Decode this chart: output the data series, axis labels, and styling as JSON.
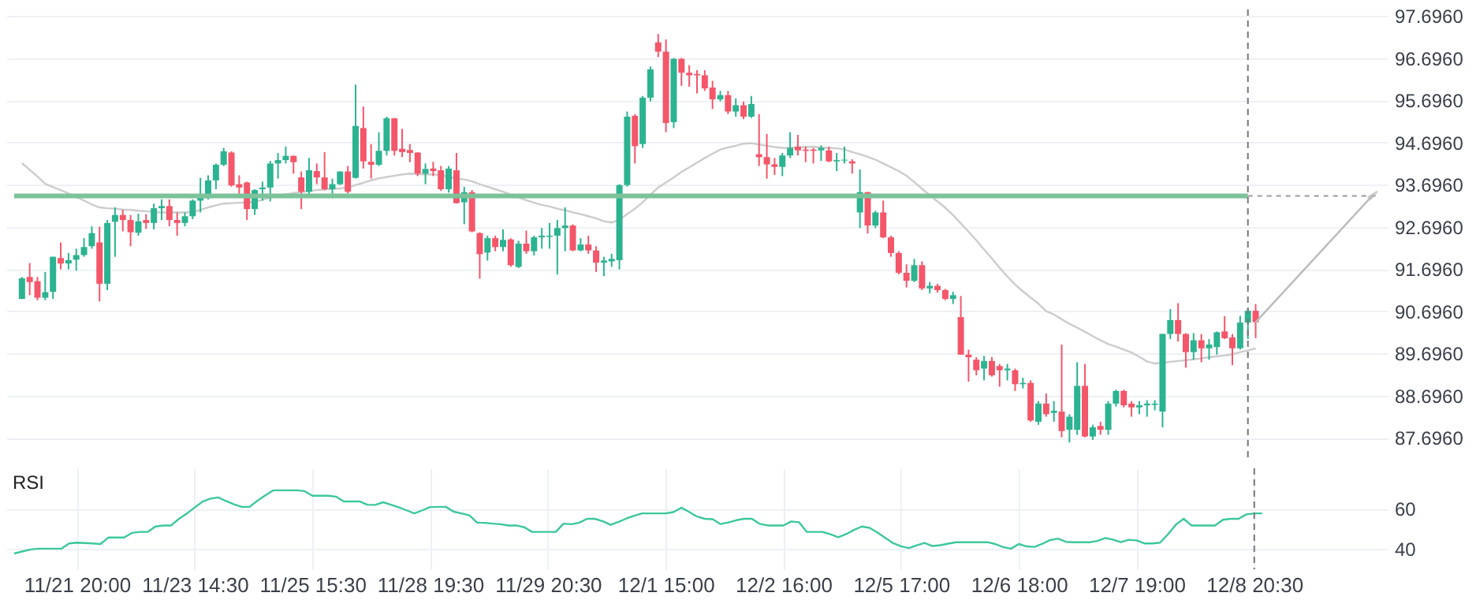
{
  "chart_data": [
    {
      "type": "candlestick",
      "categories": [
        null,
        null,
        null,
        null,
        null,
        null,
        null,
        null,
        null,
        null,
        null,
        null,
        null,
        null,
        null,
        null,
        null,
        null,
        null,
        null,
        null,
        null,
        null,
        null,
        null,
        null,
        null,
        null,
        null,
        null,
        null,
        null,
        null,
        null,
        null,
        null,
        null,
        null,
        null,
        null,
        null,
        null,
        null,
        null,
        null,
        null,
        null,
        null,
        null,
        null,
        null,
        null,
        null,
        null,
        null,
        null,
        null,
        null,
        null,
        null,
        null,
        null,
        null,
        null,
        null,
        null,
        null,
        null,
        null,
        null,
        null,
        null,
        null,
        null,
        null,
        null,
        null,
        null,
        null,
        null,
        null,
        null,
        null,
        null,
        null,
        null,
        null,
        null,
        null,
        null,
        null,
        null,
        null,
        null,
        null,
        null,
        null,
        null,
        null,
        null,
        null,
        null,
        null,
        null,
        null,
        null,
        null,
        null,
        null,
        null,
        null,
        null,
        null,
        null,
        null,
        null,
        null,
        null,
        null,
        null,
        null,
        null,
        null,
        null,
        null,
        null,
        null,
        null,
        null,
        null,
        null,
        null,
        null,
        null,
        null,
        null,
        null,
        null,
        null,
        null,
        null,
        null,
        null,
        null,
        null,
        null,
        null,
        null,
        null,
        null,
        null,
        null,
        null,
        null,
        null,
        null,
        null,
        null,
        null,
        null
      ],
      "ohlc": [
        [
          90.99,
          91.51,
          90.99,
          91.48
        ],
        [
          91.51,
          91.84,
          91.08,
          91.39
        ],
        [
          91.41,
          91.51,
          90.96,
          91.02
        ],
        [
          91.02,
          91.63,
          90.96,
          91.15
        ],
        [
          91.16,
          91.99,
          90.99,
          91.99
        ],
        [
          91.96,
          92.33,
          91.69,
          91.83
        ],
        [
          91.83,
          92.08,
          91.69,
          91.91
        ],
        [
          91.92,
          92.18,
          91.66,
          92.03
        ],
        [
          92.03,
          92.43,
          91.99,
          92.22
        ],
        [
          92.24,
          92.71,
          92.18,
          92.55
        ],
        [
          92.33,
          92.7,
          90.93,
          91.35
        ],
        [
          91.35,
          92.86,
          91.2,
          92.79
        ],
        [
          92.82,
          93.16,
          91.99,
          92.98
        ],
        [
          92.98,
          93.1,
          92.59,
          92.86
        ],
        [
          92.86,
          92.98,
          92.24,
          92.57
        ],
        [
          92.56,
          93.01,
          92.49,
          92.83
        ],
        [
          92.86,
          93.0,
          92.65,
          92.79
        ],
        [
          92.79,
          93.25,
          92.64,
          93.14
        ],
        [
          93.14,
          93.35,
          92.86,
          93.19
        ],
        [
          93.19,
          93.35,
          92.71,
          92.86
        ],
        [
          92.86,
          93.04,
          92.49,
          92.79
        ],
        [
          92.79,
          93.04,
          92.71,
          92.95
        ],
        [
          92.95,
          93.35,
          92.88,
          93.32
        ],
        [
          93.32,
          93.86,
          93.04,
          93.41
        ],
        [
          93.38,
          93.92,
          93.35,
          93.8
        ],
        [
          93.8,
          94.2,
          93.59,
          94.17
        ],
        [
          94.17,
          94.57,
          94.14,
          94.49
        ],
        [
          94.46,
          94.49,
          93.65,
          93.68
        ],
        [
          93.71,
          93.92,
          93.47,
          93.63
        ],
        [
          93.75,
          93.77,
          92.86,
          93.12
        ],
        [
          93.12,
          93.59,
          92.98,
          93.57
        ],
        [
          93.59,
          93.77,
          93.32,
          93.63
        ],
        [
          93.63,
          94.26,
          93.3,
          94.2
        ],
        [
          94.2,
          94.45,
          93.84,
          94.28
        ],
        [
          94.28,
          94.6,
          94.2,
          94.38
        ],
        [
          94.38,
          94.39,
          93.96,
          94.23
        ],
        [
          93.87,
          94.01,
          93.12,
          93.53
        ],
        [
          93.53,
          94.33,
          93.47,
          94.04
        ],
        [
          94.02,
          94.2,
          93.71,
          93.87
        ],
        [
          93.87,
          94.47,
          93.57,
          93.59
        ],
        [
          93.59,
          93.84,
          93.38,
          93.71
        ],
        [
          93.71,
          94.01,
          93.69,
          94.01
        ],
        [
          94.01,
          94.14,
          93.49,
          93.53
        ],
        [
          93.86,
          96.07,
          93.84,
          95.09
        ],
        [
          95.04,
          95.55,
          94.08,
          94.25
        ],
        [
          94.24,
          94.66,
          93.84,
          94.17
        ],
        [
          94.17,
          94.94,
          94.14,
          94.5
        ],
        [
          94.5,
          95.31,
          94.39,
          95.27
        ],
        [
          95.27,
          95.28,
          94.39,
          94.5
        ],
        [
          94.55,
          95.02,
          94.35,
          94.47
        ],
        [
          94.52,
          94.66,
          94.23,
          94.45
        ],
        [
          94.46,
          94.47,
          93.9,
          93.96
        ],
        [
          93.96,
          94.2,
          93.71,
          94.07
        ],
        [
          94.08,
          94.24,
          93.9,
          94.02
        ],
        [
          94.04,
          94.14,
          93.55,
          93.59
        ],
        [
          93.59,
          94.14,
          93.51,
          94.08
        ],
        [
          94.04,
          94.45,
          93.25,
          93.26
        ],
        [
          93.28,
          93.65,
          92.76,
          93.52
        ],
        [
          93.52,
          93.57,
          92.57,
          92.59
        ],
        [
          92.55,
          92.57,
          91.47,
          92.05
        ],
        [
          92.09,
          92.49,
          91.9,
          92.43
        ],
        [
          92.43,
          92.49,
          92.12,
          92.22
        ],
        [
          92.22,
          92.64,
          92.12,
          92.39
        ],
        [
          92.4,
          92.43,
          91.75,
          91.79
        ],
        [
          91.75,
          92.37,
          91.72,
          92.3
        ],
        [
          92.3,
          92.61,
          92.06,
          92.12
        ],
        [
          92.12,
          92.49,
          92.02,
          92.45
        ],
        [
          92.45,
          92.67,
          92.18,
          92.49
        ],
        [
          92.46,
          92.79,
          92.18,
          92.49
        ],
        [
          92.49,
          92.86,
          91.57,
          92.67
        ],
        [
          92.67,
          93.16,
          92.12,
          92.73
        ],
        [
          92.73,
          92.76,
          92.12,
          92.14
        ],
        [
          92.14,
          92.43,
          92.12,
          92.28
        ],
        [
          92.28,
          92.49,
          92.06,
          92.14
        ],
        [
          92.14,
          92.24,
          91.63,
          91.85
        ],
        [
          91.85,
          91.99,
          91.53,
          91.9
        ],
        [
          91.88,
          92.06,
          91.75,
          91.94
        ],
        [
          91.91,
          93.71,
          91.69,
          93.69
        ],
        [
          93.69,
          95.43,
          93.65,
          95.31
        ],
        [
          95.33,
          95.37,
          94.2,
          94.61
        ],
        [
          94.66,
          95.8,
          94.57,
          95.76
        ],
        [
          95.76,
          96.5,
          95.67,
          96.43
        ],
        [
          97.07,
          97.27,
          96.72,
          96.85
        ],
        [
          96.85,
          97.14,
          94.94,
          95.16
        ],
        [
          95.18,
          96.7,
          95.04,
          96.68
        ],
        [
          96.68,
          96.7,
          96.04,
          96.35
        ],
        [
          96.35,
          96.53,
          96.02,
          96.29
        ],
        [
          96.32,
          96.41,
          95.86,
          96.29
        ],
        [
          96.29,
          96.41,
          95.92,
          95.98
        ],
        [
          96.0,
          96.16,
          95.49,
          95.72
        ],
        [
          95.72,
          95.92,
          95.67,
          95.82
        ],
        [
          95.82,
          95.92,
          95.37,
          95.43
        ],
        [
          95.43,
          95.74,
          95.31,
          95.58
        ],
        [
          95.58,
          95.67,
          95.25,
          95.31
        ],
        [
          95.31,
          95.8,
          95.28,
          95.61
        ],
        [
          94.42,
          95.37,
          94.14,
          94.35
        ],
        [
          94.35,
          94.9,
          93.84,
          94.18
        ],
        [
          94.18,
          94.33,
          93.93,
          94.12
        ],
        [
          94.12,
          94.45,
          93.9,
          94.39
        ],
        [
          94.39,
          94.94,
          94.33,
          94.57
        ],
        [
          94.6,
          94.88,
          94.39,
          94.51
        ],
        [
          94.53,
          94.6,
          94.23,
          94.5
        ],
        [
          94.53,
          94.57,
          94.2,
          94.5
        ],
        [
          94.51,
          94.63,
          94.26,
          94.57
        ],
        [
          94.51,
          94.6,
          94.23,
          94.25
        ],
        [
          94.25,
          94.45,
          94.02,
          94.28
        ],
        [
          94.27,
          94.6,
          94.2,
          94.29
        ],
        [
          94.25,
          94.3,
          93.96,
          94.2
        ],
        [
          93.04,
          94.06,
          92.67,
          93.52
        ],
        [
          93.52,
          93.53,
          92.54,
          92.73
        ],
        [
          92.73,
          93.08,
          92.67,
          93.04
        ],
        [
          93.04,
          93.32,
          92.43,
          92.45
        ],
        [
          92.45,
          92.49,
          91.99,
          92.08
        ],
        [
          92.08,
          92.12,
          91.57,
          91.61
        ],
        [
          91.61,
          91.81,
          91.26,
          91.42
        ],
        [
          91.42,
          91.94,
          91.39,
          91.79
        ],
        [
          91.79,
          91.88,
          91.2,
          91.24
        ],
        [
          91.24,
          91.39,
          91.12,
          91.3
        ],
        [
          91.3,
          91.35,
          91.14,
          91.2
        ],
        [
          91.2,
          91.23,
          90.96,
          90.99
        ],
        [
          90.99,
          91.16,
          90.87,
          91.08
        ],
        [
          90.56,
          91.06,
          89.67,
          89.67
        ],
        [
          89.67,
          89.79,
          89.03,
          89.61
        ],
        [
          89.55,
          89.61,
          89.18,
          89.3
        ],
        [
          89.34,
          89.64,
          89.06,
          89.52
        ],
        [
          89.52,
          89.61,
          89.15,
          89.18
        ],
        [
          89.4,
          89.45,
          88.91,
          89.3
        ],
        [
          89.3,
          89.45,
          89.06,
          89.34
        ],
        [
          89.3,
          89.34,
          88.81,
          88.97
        ],
        [
          88.97,
          89.12,
          88.87,
          89.0
        ],
        [
          89.0,
          89.06,
          88.08,
          88.11
        ],
        [
          88.08,
          88.57,
          88.01,
          88.51
        ],
        [
          88.51,
          88.75,
          88.2,
          88.26
        ],
        [
          88.29,
          88.57,
          88.08,
          88.34
        ],
        [
          88.32,
          89.91,
          87.71,
          87.86
        ],
        [
          87.89,
          88.26,
          87.59,
          88.2
        ],
        [
          87.89,
          89.49,
          87.77,
          88.93
        ],
        [
          88.93,
          89.45,
          87.71,
          87.73
        ],
        [
          87.73,
          88.01,
          87.65,
          87.95
        ],
        [
          87.98,
          88.08,
          87.77,
          87.89
        ],
        [
          87.89,
          88.57,
          87.77,
          88.51
        ],
        [
          88.51,
          88.84,
          88.44,
          88.81
        ],
        [
          88.81,
          88.84,
          88.42,
          88.47
        ],
        [
          88.51,
          88.57,
          88.2,
          88.42
        ],
        [
          88.42,
          88.57,
          88.26,
          88.47
        ],
        [
          88.47,
          88.59,
          88.2,
          88.51
        ],
        [
          88.48,
          88.59,
          88.35,
          88.51
        ],
        [
          88.32,
          90.16,
          87.95,
          90.16
        ],
        [
          90.16,
          90.75,
          90.04,
          90.49
        ],
        [
          90.49,
          90.89,
          89.98,
          90.16
        ],
        [
          90.16,
          90.18,
          89.36,
          89.73
        ],
        [
          89.73,
          90.18,
          89.55,
          90.01
        ],
        [
          90.01,
          90.16,
          89.49,
          89.82
        ],
        [
          89.82,
          90.04,
          89.55,
          89.91
        ],
        [
          89.85,
          90.22,
          89.67,
          90.2
        ],
        [
          90.22,
          90.58,
          90.04,
          90.06
        ],
        [
          90.08,
          90.16,
          89.42,
          89.82
        ],
        [
          89.82,
          90.59,
          89.79,
          90.43
        ],
        [
          90.43,
          90.77,
          90.04,
          90.71
        ],
        [
          90.71,
          90.87,
          90.06,
          90.44
        ]
      ],
      "colors": [
        "#2cb391",
        "#f4566a",
        "#f4566a",
        "#2cb391",
        "#2cb391",
        "#f4566a",
        "#2cb391",
        "#2cb391",
        "#2cb391",
        "#2cb391",
        "#f4566a",
        "#2cb391",
        "#2cb391",
        "#f4566a",
        "#f4566a",
        "#2cb391",
        "#f4566a",
        "#2cb391",
        "#2cb391",
        "#f4566a",
        "#f4566a",
        "#2cb391",
        "#2cb391",
        "#2cb391",
        "#2cb391",
        "#2cb391",
        "#2cb391",
        "#f4566a",
        "#f4566a",
        "#f4566a",
        "#2cb391",
        "#2cb391",
        "#2cb391",
        "#2cb391",
        "#2cb391",
        "#f4566a",
        "#f4566a",
        "#2cb391",
        "#f4566a",
        "#f4566a",
        "#2cb391",
        "#2cb391",
        "#f4566a",
        "#2cb391",
        "#f4566a",
        "#f4566a",
        "#2cb391",
        "#2cb391",
        "#f4566a",
        "#f4566a",
        "#f4566a",
        "#f4566a",
        "#2cb391",
        "#f4566a",
        "#f4566a",
        "#2cb391",
        "#f4566a",
        "#2cb391",
        "#f4566a",
        "#f4566a",
        "#2cb391",
        "#f4566a",
        "#2cb391",
        "#f4566a",
        "#2cb391",
        "#f4566a",
        "#2cb391",
        "#2cb391",
        "#2cb391",
        "#2cb391",
        "#2cb391",
        "#f4566a",
        "#2cb391",
        "#f4566a",
        "#f4566a",
        "#2cb391",
        "#2cb391",
        "#2cb391",
        "#2cb391",
        "#f4566a",
        "#2cb391",
        "#2cb391",
        "#f4566a",
        "#f4566a",
        "#2cb391",
        "#f4566a",
        "#f4566a",
        "#f4566a",
        "#f4566a",
        "#f4566a",
        "#2cb391",
        "#f4566a",
        "#2cb391",
        "#f4566a",
        "#2cb391",
        "#f4566a",
        "#f4566a",
        "#f4566a",
        "#2cb391",
        "#2cb391",
        "#f4566a",
        "#f4566a",
        "#f4566a",
        "#2cb391",
        "#f4566a",
        "#2cb391",
        "#2cb391",
        "#f4566a",
        "#2cb391",
        "#f4566a",
        "#2cb391",
        "#f4566a",
        "#f4566a",
        "#f4566a",
        "#f4566a",
        "#2cb391",
        "#f4566a",
        "#2cb391",
        "#f4566a",
        "#f4566a",
        "#2cb391",
        "#f4566a",
        "#f4566a",
        "#f4566a",
        "#2cb391",
        "#f4566a",
        "#f4566a",
        "#2cb391",
        "#f4566a",
        "#2cb391",
        "#f4566a",
        "#2cb391",
        "#f4566a",
        "#2cb391",
        "#f4566a",
        "#2cb391",
        "#2cb391",
        "#f4566a",
        "#2cb391",
        "#f4566a",
        "#2cb391",
        "#2cb391",
        "#f4566a",
        "#f4566a",
        "#2cb391",
        "#2cb391",
        "#2cb391",
        "#2cb391",
        "#2cb391",
        "#f4566a",
        "#f4566a",
        "#2cb391",
        "#f4566a",
        "#2cb391",
        "#2cb391",
        "#f4566a",
        "#f4566a",
        "#2cb391",
        "#2cb391",
        "#f4566a"
      ],
      "series": [
        {
          "type": "line",
          "color": "#cccccc",
          "values": [
            94.21,
            94.05,
            93.89,
            93.72,
            93.64,
            93.57,
            93.49,
            93.41,
            93.32,
            93.23,
            93.16,
            93.14,
            93.13,
            93.11,
            93.1,
            93.08,
            93.07,
            93.05,
            93.04,
            93.04,
            93.04,
            93.04,
            93.05,
            93.1,
            93.16,
            93.21,
            93.25,
            93.26,
            93.27,
            93.28,
            93.29,
            93.34,
            93.39,
            93.43,
            93.47,
            93.5,
            93.52,
            93.55,
            93.57,
            93.58,
            93.6,
            93.61,
            93.63,
            93.69,
            93.74,
            93.8,
            93.85,
            93.88,
            93.91,
            93.94,
            93.96,
            93.95,
            93.94,
            93.94,
            93.93,
            93.88,
            93.85,
            93.82,
            93.78,
            93.71,
            93.65,
            93.59,
            93.53,
            93.46,
            93.39,
            93.33,
            93.27,
            93.22,
            93.18,
            93.13,
            93.09,
            93.04,
            93.0,
            92.95,
            92.9,
            92.83,
            92.8,
            92.87,
            93.0,
            93.13,
            93.28,
            93.46,
            93.63,
            93.75,
            93.87,
            94.0,
            94.11,
            94.22,
            94.33,
            94.43,
            94.53,
            94.58,
            94.62,
            94.67,
            94.68,
            94.65,
            94.62,
            94.59,
            94.57,
            94.57,
            94.58,
            94.59,
            94.6,
            94.58,
            94.57,
            94.56,
            94.53,
            94.47,
            94.42,
            94.36,
            94.29,
            94.2,
            94.11,
            94.02,
            93.91,
            93.76,
            93.6,
            93.45,
            93.3,
            93.15,
            92.98,
            92.78,
            92.58,
            92.38,
            92.16,
            91.95,
            91.73,
            91.52,
            91.33,
            91.17,
            91.02,
            90.88,
            90.7,
            90.62,
            90.51,
            90.4,
            90.31,
            90.21,
            90.11,
            90.01,
            89.92,
            89.86,
            89.79,
            89.72,
            89.62,
            89.51,
            89.46,
            89.48,
            89.5,
            89.52,
            89.54,
            89.56,
            89.58,
            89.61,
            89.63,
            89.65,
            89.68,
            89.73,
            89.77,
            89.82
          ]
        }
      ],
      "ref_lines": [
        {
          "axis": "y",
          "value": 93.43,
          "color": "#7cc29a"
        }
      ],
      "ylim": [
        87.2,
        97.85
      ],
      "yticks": [
        {
          "value": 87.696,
          "label": "87.6960"
        },
        {
          "value": 88.696,
          "label": "88.6960"
        },
        {
          "value": 89.696,
          "label": "89.6960"
        },
        {
          "value": 90.696,
          "label": "90.6960"
        },
        {
          "value": 91.696,
          "label": "91.6960"
        },
        {
          "value": 92.696,
          "label": "92.6960"
        },
        {
          "value": 93.696,
          "label": "93.6960"
        },
        {
          "value": 94.696,
          "label": "94.6960"
        },
        {
          "value": 95.696,
          "label": "95.6960"
        },
        {
          "value": 96.696,
          "label": "96.6960"
        },
        {
          "value": 97.696,
          "label": "97.6960"
        }
      ],
      "grid": true
    },
    {
      "type": "line",
      "title": "RSI",
      "categories": [
        null,
        null,
        null,
        null,
        null,
        null,
        null,
        null,
        "11/21 20:00",
        null,
        null,
        null,
        null,
        null,
        null,
        null,
        null,
        null,
        null,
        null,
        null,
        null,
        null,
        "11/23 14:30",
        null,
        null,
        null,
        null,
        null,
        null,
        null,
        null,
        null,
        null,
        null,
        null,
        null,
        null,
        "11/25 15:30",
        null,
        null,
        null,
        null,
        null,
        null,
        null,
        null,
        null,
        null,
        null,
        null,
        null,
        null,
        "11/28 19:30",
        null,
        null,
        null,
        null,
        null,
        null,
        null,
        null,
        null,
        null,
        null,
        null,
        null,
        null,
        "11/29 20:30",
        null,
        null,
        null,
        null,
        null,
        null,
        null,
        null,
        null,
        null,
        null,
        null,
        null,
        null,
        "12/1 15:00",
        null,
        null,
        null,
        null,
        null,
        null,
        null,
        null,
        null,
        null,
        null,
        null,
        null,
        null,
        "12/2 16:00",
        null,
        null,
        null,
        null,
        null,
        null,
        null,
        null,
        null,
        null,
        null,
        null,
        null,
        null,
        "12/5 17:00",
        null,
        null,
        null,
        null,
        null,
        null,
        null,
        null,
        null,
        null,
        null,
        null,
        null,
        null,
        "12/6 18:00",
        null,
        null,
        null,
        null,
        null,
        null,
        null,
        null,
        null,
        null,
        null,
        null,
        null,
        null,
        "12/7 19:00",
        null,
        null,
        null,
        null,
        null,
        null,
        null,
        null,
        null,
        null,
        null,
        null,
        null,
        null,
        "12/8 20:30",
        null
      ],
      "series": [
        {
          "color": "#3cc79c",
          "values": [
            37.8,
            38.8,
            39.7,
            40.2,
            40.2,
            40.2,
            40.2,
            42.8,
            43.2,
            43.0,
            42.8,
            42.5,
            45.7,
            45.7,
            45.7,
            48.0,
            48.5,
            48.5,
            51.2,
            51.7,
            51.7,
            55.0,
            57.6,
            60.6,
            63.5,
            65.0,
            65.6,
            63.8,
            62.2,
            60.9,
            60.9,
            64.0,
            66.6,
            69.1,
            69.1,
            69.1,
            69.1,
            68.7,
            66.4,
            66.4,
            66.4,
            66.0,
            63.6,
            63.6,
            63.6,
            62.0,
            61.9,
            63.2,
            62.0,
            60.7,
            59.2,
            57.7,
            59.2,
            60.8,
            60.9,
            60.9,
            58.5,
            57.7,
            56.7,
            53.1,
            53.0,
            52.6,
            52.3,
            51.7,
            51.7,
            50.8,
            48.5,
            48.5,
            48.5,
            48.5,
            52.6,
            52.3,
            53.1,
            55.0,
            55.0,
            53.8,
            52.0,
            53.5,
            55.1,
            56.5,
            57.7,
            57.7,
            57.7,
            57.7,
            58.3,
            60.5,
            58.4,
            56.1,
            55.0,
            54.8,
            52.4,
            53.2,
            54.3,
            55.0,
            55.0,
            52.5,
            51.7,
            51.7,
            51.7,
            53.7,
            53.3,
            48.5,
            48.5,
            48.5,
            47.3,
            45.9,
            47.4,
            49.5,
            51.2,
            50.5,
            48.2,
            45.5,
            42.9,
            41.4,
            40.5,
            41.9,
            43.0,
            41.5,
            41.9,
            42.7,
            43.4,
            43.4,
            43.4,
            43.4,
            43.4,
            42.5,
            41.0,
            40.2,
            42.5,
            41.3,
            41.1,
            42.6,
            44.5,
            45.2,
            43.6,
            43.4,
            43.4,
            43.4,
            44.0,
            45.5,
            44.7,
            43.4,
            44.6,
            44.3,
            42.8,
            42.8,
            43.2,
            47.3,
            52.1,
            55.0,
            51.7,
            51.7,
            51.7,
            51.7,
            54.5,
            55.0,
            55.0,
            57.2,
            57.7,
            57.7
          ]
        }
      ],
      "ref_lines": [
        {
          "axis": "x",
          "value": "12/8 20:30",
          "color": "#777777",
          "line_style": "dashed"
        }
      ],
      "ylim": [
        30,
        80
      ],
      "yticks": [
        40,
        60
      ],
      "grid": true
    }
  ]
}
